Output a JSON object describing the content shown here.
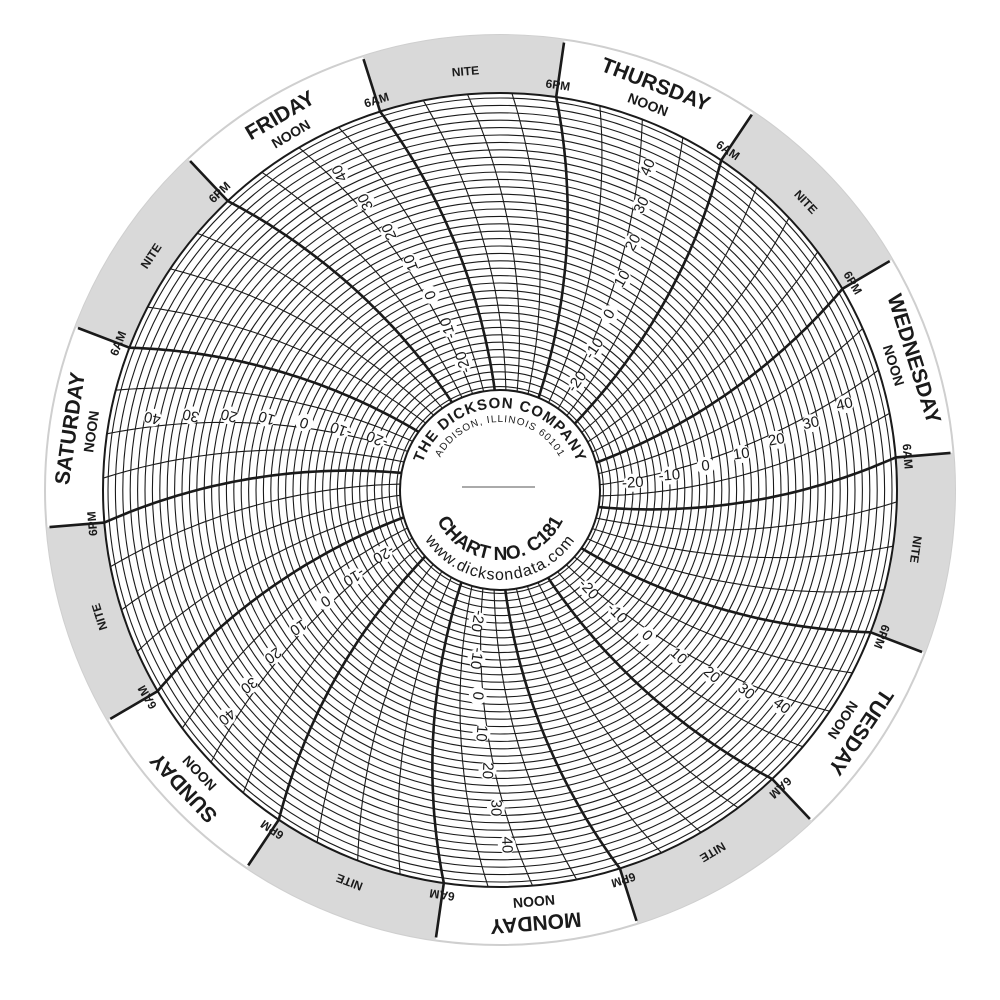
{
  "chart": {
    "type": "circular-recorder-chart-paper",
    "days": [
      {
        "name": "THURSDAY"
      },
      {
        "name": "WEDNESDAY"
      },
      {
        "name": "TUESDAY"
      },
      {
        "name": "MONDAY"
      },
      {
        "name": "SUNDAY"
      },
      {
        "name": "SATURDAY"
      },
      {
        "name": "FRIDAY"
      }
    ],
    "time_labels": {
      "noon": "NOON",
      "am": "6AM",
      "pm": "6PM",
      "night": "NITE"
    },
    "temperature_labels": [
      "-20",
      "-10",
      "0",
      "10",
      "20",
      "30",
      "40"
    ],
    "scale_min": -20,
    "scale_max": 40,
    "ring_step": 2,
    "hour_line_step": 3
  },
  "hub": {
    "company": "THE DICKSON COMPANY",
    "address": "ADDISON, ILLINOIS 60101",
    "chart_no": "CHART NO.  C181",
    "website": "www.dicksondata.com"
  },
  "colors": {
    "ink": "#1a1a1a",
    "night_band": "#d9d9d9",
    "paper": "#ffffff"
  }
}
